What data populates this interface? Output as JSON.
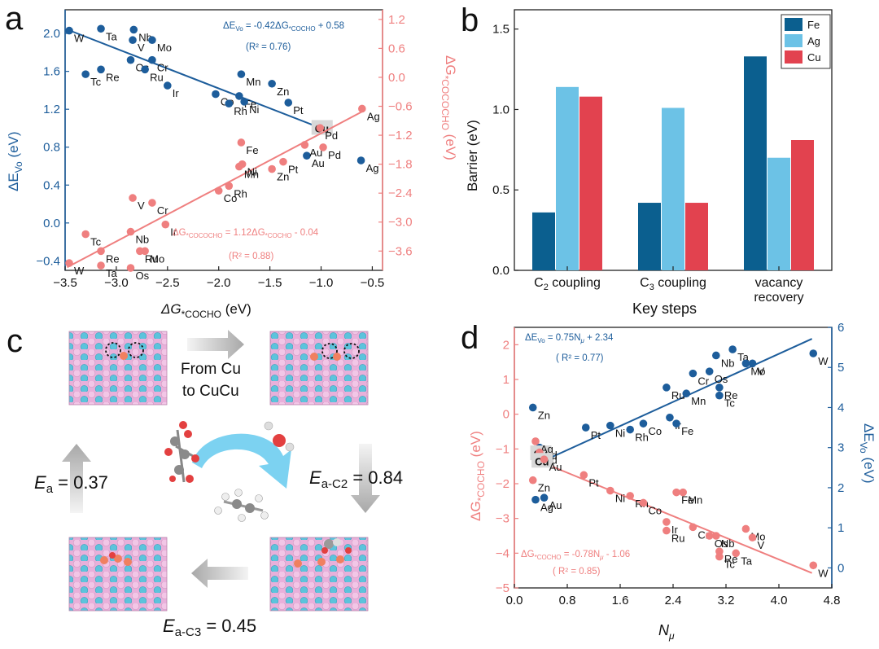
{
  "colors": {
    "blue": "#1d5d9b",
    "salmon": "#ef7f7f",
    "bar_fe": "#0b5f8f",
    "bar_ag": "#6cc2e6",
    "bar_cu": "#e2424f",
    "arrow_grey": "#b8b8b8",
    "cycle_arrow": "#6ecdf0",
    "slab_pink": "#f2c6e6",
    "slab_cyan": "#5cc3dc",
    "adsorbate_orange": "#f08060"
  },
  "panels": {
    "a": {
      "label": "a",
      "xlabel_main": "ΔG",
      "xlabel_sub": "*COCHO",
      "xlabel_unit": " (eV)",
      "left_ylabel_main": "ΔE",
      "left_ylabel_sub": "Vo",
      "left_ylabel_unit": " (eV)",
      "right_ylabel_main": "ΔG",
      "right_ylabel_sub": "*COCOCHO",
      "right_ylabel_unit": " (eV)",
      "fit_top": {
        "prefix": "ΔE",
        "sub": "Vo",
        "rest": " = -0.42ΔG",
        "sub2": "*COCHO",
        "tail": " + 0.58",
        "r2": "(R² = 0.76)"
      },
      "fit_bottom": {
        "prefix": "ΔG",
        "sub": "*COCOCHO",
        "rest": " = 1.12ΔG",
        "sub2": "*COCHO",
        "tail": " - 0.04",
        "r2": "(R² = 0.88)"
      },
      "highlight": "Cu"
    },
    "b": {
      "label": "b"
    },
    "c": {
      "label": "c",
      "top_arrow_text": [
        "From Cu",
        "to CuCu"
      ],
      "ea_left": {
        "main": "E",
        "sub": "a",
        "value": " = 0.37"
      },
      "ea_right": {
        "main": "E",
        "sub": "a-C2",
        "value": " = 0.84"
      },
      "ea_bottom": {
        "main": "E",
        "sub": "a-C3",
        "value": " = 0.45"
      }
    },
    "d": {
      "label": "d",
      "xlabel_main": "N",
      "xlabel_sub": "μ",
      "left_ylabel_main": "ΔG",
      "left_ylabel_sub": "*COCHO",
      "left_ylabel_unit": " (eV)",
      "right_ylabel_main": "ΔE",
      "right_ylabel_sub": "Vo",
      "right_ylabel_unit": " (eV)",
      "fit_top": {
        "prefix": "ΔE",
        "sub": "Vo",
        "rest": " = 0.75N",
        "sub2": "μ",
        "tail": " + 2.34",
        "r2": "( R² = 0.77)"
      },
      "fit_bottom": {
        "prefix": "ΔG",
        "sub": "*COCHO",
        "rest": " = -0.78N",
        "sub2": "μ",
        "tail": " - 1.06",
        "r2": "( R² = 0.85)"
      },
      "highlight": "Cu"
    }
  },
  "chart_data": [
    {
      "panel": "a",
      "type": "scatter",
      "xlabel": "ΔG*COCHO (eV)",
      "ylabel": "ΔEVo (eV)",
      "y2label": "ΔG*COCOCHO (eV)",
      "xlim": [
        -3.5,
        -0.4
      ],
      "ylim": [
        -0.5,
        2.25
      ],
      "y2lim": [
        -4.0,
        1.4
      ],
      "xticks": [
        -3.5,
        -3.0,
        -2.5,
        -2.0,
        -1.5,
        -1.0,
        -0.5
      ],
      "yticks": [
        -0.4,
        0.0,
        0.4,
        0.8,
        1.2,
        1.6,
        2.0
      ],
      "y2ticks": [
        -3.6,
        -3.0,
        -2.4,
        -1.8,
        -1.2,
        -0.6,
        0.0,
        0.6,
        1.2
      ],
      "series": [
        {
          "name": "ΔEVo",
          "axis": "left",
          "fit": {
            "slope": -0.42,
            "intercept": 0.58,
            "x": [
              -3.48,
              -0.99
            ]
          },
          "points": [
            {
              "label": "W",
              "x": -3.46,
              "y": 2.03
            },
            {
              "label": "Ta",
              "x": -3.15,
              "y": 2.05
            },
            {
              "label": "Nb",
              "x": -2.83,
              "y": 2.04
            },
            {
              "label": "V",
              "x": -2.84,
              "y": 1.93
            },
            {
              "label": "Mo",
              "x": -2.65,
              "y": 1.93
            },
            {
              "label": "Cr",
              "x": -2.65,
              "y": 1.72
            },
            {
              "label": "Os",
              "x": -2.86,
              "y": 1.72
            },
            {
              "label": "Ru",
              "x": -2.72,
              "y": 1.62
            },
            {
              "label": "Re",
              "x": -3.15,
              "y": 1.62
            },
            {
              "label": "Tc",
              "x": -3.3,
              "y": 1.57
            },
            {
              "label": "Ir",
              "x": -2.5,
              "y": 1.45
            },
            {
              "label": "Mn",
              "x": -1.78,
              "y": 1.57
            },
            {
              "label": "Zn",
              "x": -1.48,
              "y": 1.47
            },
            {
              "label": "Co",
              "x": -2.03,
              "y": 1.36
            },
            {
              "label": "Fe",
              "x": -1.8,
              "y": 1.34
            },
            {
              "label": "Rh",
              "x": -1.9,
              "y": 1.26
            },
            {
              "label": "Ni",
              "x": -1.75,
              "y": 1.28
            },
            {
              "label": "Pt",
              "x": -1.32,
              "y": 1.27
            },
            {
              "label": "Cu",
              "x": -0.99,
              "y": 1.0
            },
            {
              "label": "Au",
              "x": -1.14,
              "y": 0.71
            },
            {
              "label": "Ag",
              "x": -0.61,
              "y": 0.66
            }
          ]
        },
        {
          "name": "ΔG*COCOCHO",
          "axis": "right",
          "fit": {
            "slope": 1.12,
            "intercept": -0.04,
            "x": [
              -3.48,
              -0.6
            ]
          },
          "points": [
            {
              "label": "W",
              "x": -3.46,
              "y": -3.85
            },
            {
              "label": "Ta",
              "x": -3.15,
              "y": -3.9
            },
            {
              "label": "Os",
              "x": -2.86,
              "y": -3.95
            },
            {
              "label": "Re",
              "x": -3.15,
              "y": -3.6
            },
            {
              "label": "Ru",
              "x": -2.77,
              "y": -3.6
            },
            {
              "label": "Mo",
              "x": -2.72,
              "y": -3.6
            },
            {
              "label": "Tc",
              "x": -3.3,
              "y": -3.25
            },
            {
              "label": "Nb",
              "x": -2.86,
              "y": -3.2
            },
            {
              "label": "Ir",
              "x": -2.52,
              "y": -3.05
            },
            {
              "label": "V",
              "x": -2.84,
              "y": -2.5
            },
            {
              "label": "Cr",
              "x": -2.65,
              "y": -2.6
            },
            {
              "label": "Co",
              "x": -2.0,
              "y": -2.35
            },
            {
              "label": "Rh",
              "x": -1.9,
              "y": -2.25
            },
            {
              "label": "Mn",
              "x": -1.8,
              "y": -1.85
            },
            {
              "label": "Ni",
              "x": -1.77,
              "y": -1.8
            },
            {
              "label": "Zn",
              "x": -1.48,
              "y": -1.9
            },
            {
              "label": "Pt",
              "x": -1.37,
              "y": -1.75
            },
            {
              "label": "Fe",
              "x": -1.78,
              "y": -1.35
            },
            {
              "label": "Au",
              "x": -1.16,
              "y": -1.4
            },
            {
              "label": "Pd",
              "x": -1.01,
              "y": -1.05
            },
            {
              "label": "Pd",
              "x": -0.98,
              "y": -1.45
            },
            {
              "label": "Ag",
              "x": -0.6,
              "y": -0.65
            }
          ]
        }
      ]
    },
    {
      "panel": "b",
      "type": "bar",
      "xlabel": "Key steps",
      "ylabel": "Barrier (eV)",
      "ylim": [
        0,
        1.62
      ],
      "yticks": [
        0.0,
        0.5,
        1.0,
        1.5
      ],
      "categories": [
        {
          "main": "C",
          "sub": "2",
          "rest": " coupling"
        },
        {
          "main": "C",
          "sub": "3",
          "rest": " coupling"
        },
        {
          "main": "vacancy",
          "sub": "",
          "rest": "",
          "line2": "recovery"
        }
      ],
      "legend": "top-right",
      "series": [
        {
          "name": "Fe",
          "values": [
            0.36,
            0.42,
            1.33
          ]
        },
        {
          "name": "Ag",
          "values": [
            1.14,
            1.01,
            0.7
          ]
        },
        {
          "name": "Cu",
          "values": [
            1.08,
            0.42,
            0.81
          ]
        }
      ]
    },
    {
      "panel": "d",
      "type": "scatter",
      "xlabel": "Nμ",
      "ylabel": "ΔG*COCHO (eV)",
      "y2label": "ΔEVo (eV)",
      "xlim": [
        0.0,
        4.8
      ],
      "ylim": [
        -5.0,
        2.5
      ],
      "y2lim": [
        -0.5,
        6.0
      ],
      "xticks": [
        0.0,
        0.8,
        1.6,
        2.4,
        3.2,
        4.0,
        4.8
      ],
      "yticks": [
        -5,
        -4,
        -3,
        -2,
        -1,
        0,
        1,
        2
      ],
      "y2ticks": [
        0,
        1,
        2,
        3,
        4,
        5,
        6
      ],
      "series": [
        {
          "name": "ΔEVo",
          "axis": "right",
          "fit": {
            "slope": 0.75,
            "intercept": 2.34,
            "x": [
              0.3,
              4.5
            ]
          },
          "points": [
            {
              "label": "Zn",
              "x": 0.28,
              "y": 4.0
            },
            {
              "label": "Pt",
              "x": 1.08,
              "y": 3.5
            },
            {
              "label": "Ni",
              "x": 1.45,
              "y": 3.55
            },
            {
              "label": "Rh",
              "x": 1.75,
              "y": 3.45
            },
            {
              "label": "Co",
              "x": 1.95,
              "y": 3.6
            },
            {
              "label": "Ru",
              "x": 2.3,
              "y": 4.5
            },
            {
              "label": "Ir",
              "x": 2.35,
              "y": 3.75
            },
            {
              "label": "Fe",
              "x": 2.45,
              "y": 3.6
            },
            {
              "label": "Cr",
              "x": 2.7,
              "y": 4.85
            },
            {
              "label": "Mn",
              "x": 2.6,
              "y": 4.35
            },
            {
              "label": "Os",
              "x": 2.95,
              "y": 4.9
            },
            {
              "label": "Nb",
              "x": 3.05,
              "y": 5.3
            },
            {
              "label": "Ta",
              "x": 3.3,
              "y": 5.45
            },
            {
              "label": "Mo",
              "x": 3.5,
              "y": 5.1
            },
            {
              "label": "V",
              "x": 3.6,
              "y": 5.1
            },
            {
              "label": "Re",
              "x": 3.1,
              "y": 4.5
            },
            {
              "label": "Tc",
              "x": 3.1,
              "y": 4.3
            },
            {
              "label": "W",
              "x": 4.52,
              "y": 5.35
            },
            {
              "label": "Pd",
              "x": 0.38,
              "y": 3.0
            },
            {
              "label": "Cu",
              "x": 0.4,
              "y": 2.85
            },
            {
              "label": "Au",
              "x": 0.45,
              "y": 1.75
            },
            {
              "label": "Ag",
              "x": 0.32,
              "y": 1.7
            }
          ]
        },
        {
          "name": "ΔG*COCHO",
          "axis": "left",
          "fit": {
            "slope": -0.78,
            "intercept": -1.06,
            "x": [
              0.3,
              4.5
            ]
          },
          "points": [
            {
              "label": "Ag",
              "x": 0.32,
              "y": -0.78
            },
            {
              "label": "Pd",
              "x": 0.38,
              "y": -1.1
            },
            {
              "label": "Cu",
              "x": 0.42,
              "y": -1.35
            },
            {
              "label": "Au",
              "x": 0.45,
              "y": -1.3
            },
            {
              "label": "Zn",
              "x": 0.28,
              "y": -1.9
            },
            {
              "label": "Pt",
              "x": 1.05,
              "y": -1.75
            },
            {
              "label": "Ni",
              "x": 1.45,
              "y": -2.2
            },
            {
              "label": "Rh",
              "x": 1.75,
              "y": -2.35
            },
            {
              "label": "Co",
              "x": 1.95,
              "y": -2.55
            },
            {
              "label": "Fe",
              "x": 2.45,
              "y": -2.25
            },
            {
              "label": "Mn",
              "x": 2.55,
              "y": -2.25
            },
            {
              "label": "Ir",
              "x": 2.3,
              "y": -3.1
            },
            {
              "label": "Ru",
              "x": 2.3,
              "y": -3.35
            },
            {
              "label": "Cr",
              "x": 2.7,
              "y": -3.25
            },
            {
              "label": "Nb",
              "x": 3.05,
              "y": -3.5
            },
            {
              "label": "Os",
              "x": 2.95,
              "y": -3.5
            },
            {
              "label": "Mo",
              "x": 3.5,
              "y": -3.3
            },
            {
              "label": "V",
              "x": 3.6,
              "y": -3.55
            },
            {
              "label": "Re",
              "x": 3.1,
              "y": -3.95
            },
            {
              "label": "Tc",
              "x": 3.1,
              "y": -4.1
            },
            {
              "label": "Ta",
              "x": 3.35,
              "y": -4.0
            },
            {
              "label": "W",
              "x": 4.52,
              "y": -4.35
            }
          ]
        }
      ]
    }
  ]
}
